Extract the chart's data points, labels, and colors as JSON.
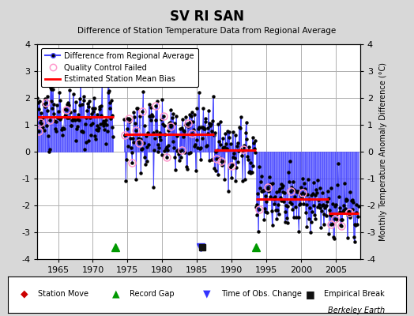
{
  "title": "SV RI SAN",
  "subtitle": "Difference of Station Temperature Data from Regional Average",
  "ylabel_right": "Monthly Temperature Anomaly Difference (°C)",
  "ylim": [
    -4,
    4
  ],
  "xlim": [
    1962.0,
    2008.5
  ],
  "xticks": [
    1965,
    1970,
    1975,
    1980,
    1985,
    1990,
    1995,
    2000,
    2005
  ],
  "yticks": [
    -4,
    -3,
    -2,
    -1,
    0,
    1,
    2,
    3,
    4
  ],
  "background_color": "#d8d8d8",
  "plot_bg_color": "#ffffff",
  "grid_color": "#b0b0b0",
  "line_color": "#4444ff",
  "dot_color": "#000000",
  "qc_color": "#ff99cc",
  "bias_color": "#ff0000",
  "watermark": "Berkeley Earth",
  "segments": [
    {
      "x_start": 1962.0,
      "x_end": 1973.0,
      "bias": 1.3
    },
    {
      "x_start": 1974.5,
      "x_end": 1987.5,
      "bias": 0.65
    },
    {
      "x_start": 1987.5,
      "x_end": 1993.5,
      "bias": 0.05
    },
    {
      "x_start": 1993.5,
      "x_end": 2004.0,
      "bias": -1.75
    },
    {
      "x_start": 2004.0,
      "x_end": 2008.3,
      "bias": -2.3
    }
  ],
  "record_gaps": [
    1973.25,
    1993.5
  ],
  "station_moves": [],
  "obs_changes": [
    1985.5
  ],
  "empirical_breaks": [
    1985.8
  ],
  "seeds": [
    10,
    20,
    30,
    40,
    50
  ],
  "noise_levels": [
    0.52,
    0.62,
    0.52,
    0.52,
    0.48
  ],
  "seasonal_amp": 0.3
}
